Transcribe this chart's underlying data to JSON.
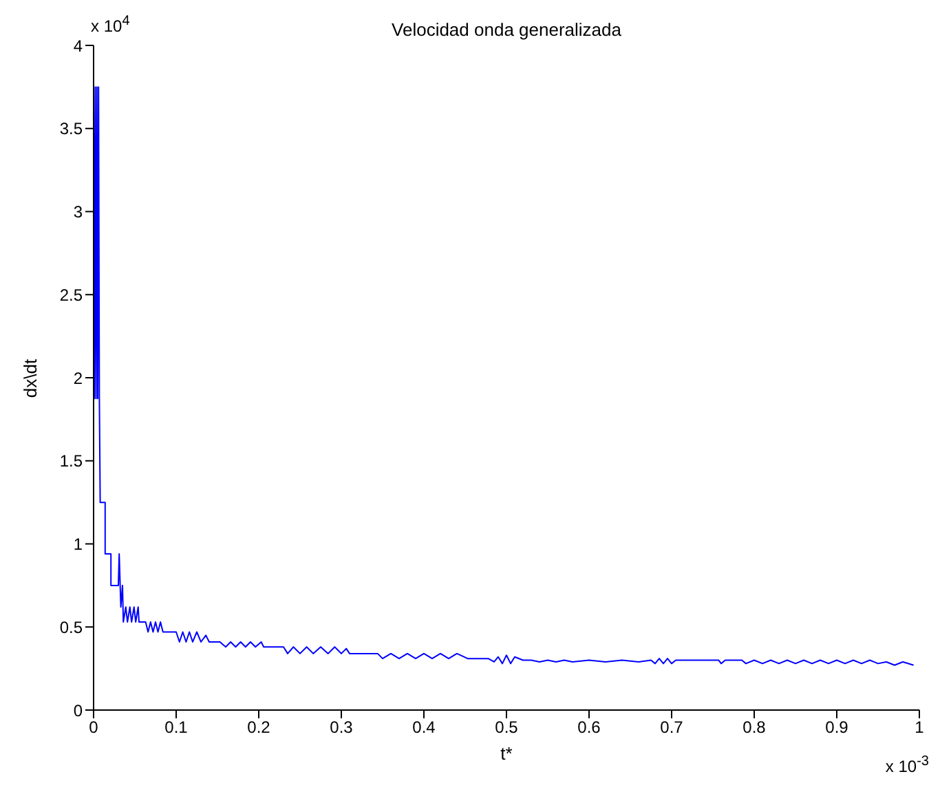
{
  "chart_data": {
    "type": "line",
    "title": "Velocidad onda generalizada",
    "xlabel": "t*",
    "ylabel": "dx\\dt",
    "annotations": [
      "x 10$^{4}$",
      "x 10$^{-3}$"
    ],
    "xlim": [
      0,
      1
    ],
    "xticks": [
      0,
      0.1,
      0.2,
      0.3,
      0.4,
      0.5,
      0.6,
      0.7,
      0.8,
      0.9,
      1
    ],
    "ylim": [
      0,
      4
    ],
    "yticks": [
      0,
      0.5,
      1,
      1.5,
      2,
      2.5,
      3,
      3.5,
      4
    ],
    "grid": false,
    "legend": false,
    "series": [
      {
        "color": "#0000ff",
        "x": [
          0,
          0.001,
          0.002,
          0.003,
          0.004,
          0.005,
          0.006,
          0.007,
          0.008,
          0.014,
          0.014,
          0.021,
          0.021,
          0.03,
          0.031,
          0.033,
          0.035,
          0.036,
          0.039,
          0.041,
          0.044,
          0.046,
          0.049,
          0.051,
          0.054,
          0.055,
          0.063,
          0.066,
          0.069,
          0.072,
          0.075,
          0.078,
          0.081,
          0.084,
          0.1,
          0.104,
          0.108,
          0.112,
          0.116,
          0.12,
          0.125,
          0.13,
          0.136,
          0.14,
          0.153,
          0.16,
          0.166,
          0.172,
          0.178,
          0.184,
          0.19,
          0.196,
          0.203,
          0.206,
          0.23,
          0.235,
          0.242,
          0.25,
          0.258,
          0.266,
          0.275,
          0.284,
          0.292,
          0.3,
          0.306,
          0.31,
          0.344,
          0.35,
          0.36,
          0.37,
          0.38,
          0.39,
          0.4,
          0.41,
          0.42,
          0.43,
          0.44,
          0.453,
          0.478,
          0.485,
          0.49,
          0.495,
          0.5,
          0.505,
          0.51,
          0.52,
          0.53,
          0.54,
          0.55,
          0.56,
          0.57,
          0.58,
          0.6,
          0.62,
          0.64,
          0.66,
          0.675,
          0.68,
          0.685,
          0.69,
          0.695,
          0.7,
          0.705,
          0.757,
          0.76,
          0.765,
          0.785,
          0.79,
          0.8,
          0.81,
          0.82,
          0.83,
          0.84,
          0.85,
          0.86,
          0.87,
          0.88,
          0.89,
          0.9,
          0.91,
          0.92,
          0.93,
          0.94,
          0.95,
          0.96,
          0.97,
          0.98,
          0.993
        ],
        "values": [
          3.75,
          1.875,
          3.75,
          1.875,
          3.75,
          1.875,
          3.75,
          1.875,
          1.25,
          1.25,
          0.94,
          0.94,
          0.75,
          0.75,
          0.94,
          0.62,
          0.75,
          0.53,
          0.62,
          0.53,
          0.62,
          0.53,
          0.62,
          0.53,
          0.62,
          0.53,
          0.53,
          0.47,
          0.53,
          0.47,
          0.53,
          0.47,
          0.53,
          0.47,
          0.47,
          0.41,
          0.47,
          0.41,
          0.47,
          0.41,
          0.47,
          0.41,
          0.45,
          0.41,
          0.41,
          0.38,
          0.41,
          0.38,
          0.41,
          0.38,
          0.41,
          0.38,
          0.41,
          0.38,
          0.38,
          0.34,
          0.38,
          0.34,
          0.38,
          0.34,
          0.38,
          0.34,
          0.38,
          0.34,
          0.37,
          0.34,
          0.34,
          0.31,
          0.34,
          0.31,
          0.34,
          0.31,
          0.34,
          0.31,
          0.34,
          0.31,
          0.34,
          0.31,
          0.31,
          0.29,
          0.32,
          0.28,
          0.33,
          0.28,
          0.32,
          0.3,
          0.3,
          0.29,
          0.3,
          0.29,
          0.3,
          0.29,
          0.3,
          0.29,
          0.3,
          0.29,
          0.3,
          0.28,
          0.31,
          0.28,
          0.31,
          0.28,
          0.3,
          0.3,
          0.28,
          0.3,
          0.3,
          0.28,
          0.3,
          0.28,
          0.3,
          0.28,
          0.3,
          0.28,
          0.3,
          0.28,
          0.3,
          0.28,
          0.3,
          0.28,
          0.3,
          0.28,
          0.3,
          0.28,
          0.29,
          0.27,
          0.29,
          0.27
        ]
      }
    ]
  }
}
